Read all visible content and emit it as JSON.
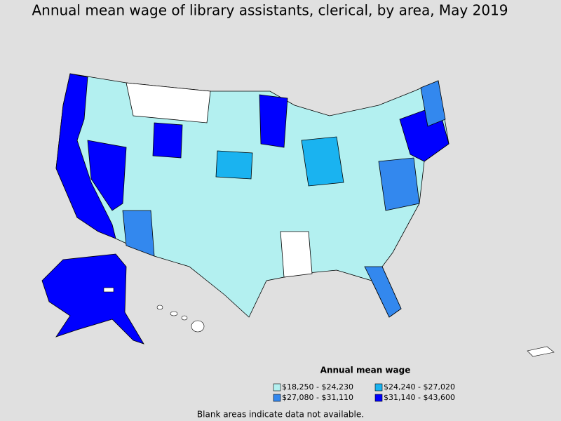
{
  "title": "Annual mean wage of library assistants, clerical, by area, May 2019",
  "legend": {
    "title": "Annual mean wage",
    "items": [
      {
        "label": "$18,250 - $24,230",
        "color": "#b3f0f0"
      },
      {
        "label": "$24,240 - $27,020",
        "color": "#1ab3f0"
      },
      {
        "label": "$27,080 - $31,110",
        "color": "#3388ee"
      },
      {
        "label": "$31,140 - $43,600",
        "color": "#0000ff"
      }
    ]
  },
  "note": "Blank areas indicate data not available."
}
